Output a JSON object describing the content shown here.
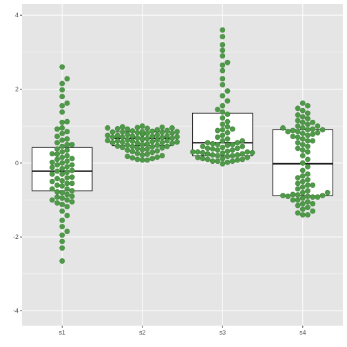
{
  "chart_data": {
    "type": "box",
    "overlay": "beeswarm",
    "categories": [
      "s1",
      "s2",
      "s3",
      "s4"
    ],
    "title": "",
    "xlabel": "",
    "ylabel": "",
    "ylim": [
      -4.4,
      4.3
    ],
    "y_ticks": [
      "-4",
      "-2",
      "0",
      "2",
      "4"
    ],
    "grid": true,
    "colors": {
      "panel": "#e5e5e5",
      "grid_major": "#ffffff",
      "point_fill": "#4f9a48",
      "point_stroke": "#3b7f36",
      "box_fill": "#ffffff",
      "box_line": "#1a1a1a",
      "tick_text": "#4d4d4d"
    },
    "boxes": [
      {
        "category": "s1",
        "q1": -0.75,
        "median": -0.22,
        "q3": 0.42
      },
      {
        "category": "s2",
        "q1": 0.47,
        "median": 0.67,
        "q3": 0.84
      },
      {
        "category": "s3",
        "q1": 0.2,
        "median": 0.55,
        "q3": 1.35
      },
      {
        "category": "s4",
        "q1": -0.88,
        "median": -0.02,
        "q3": 0.9
      }
    ],
    "series": [
      {
        "category": "s1",
        "values": [
          2.6,
          2.28,
          2.15,
          1.98,
          1.8,
          1.62,
          1.55,
          1.38,
          1.12,
          1.1,
          0.92,
          0.85,
          0.72,
          0.62,
          0.5,
          0.5,
          0.45,
          0.38,
          0.35,
          0.25,
          0.24,
          0.15,
          0.12,
          0.1,
          0.05,
          0.02,
          0.0,
          -0.05,
          -0.1,
          -0.12,
          -0.2,
          -0.22,
          -0.25,
          -0.3,
          -0.38,
          -0.42,
          -0.48,
          -0.5,
          -0.55,
          -0.6,
          -0.62,
          -0.7,
          -0.78,
          -0.8,
          -0.85,
          -0.92,
          -0.95,
          -1.0,
          -1.05,
          -1.08,
          -1.12,
          -1.18,
          -1.3,
          -1.42,
          -1.55,
          -1.72,
          -1.85,
          -1.95,
          -2.12,
          -2.3,
          -2.65,
          0.95,
          0.8,
          0.55,
          0.3,
          -0.05,
          -0.4,
          -0.7,
          -0.9,
          -1.0,
          0.2,
          -0.15,
          -0.55,
          -0.75,
          0.65,
          -0.3
        ]
      },
      {
        "category": "s2",
        "values": [
          1.0,
          0.98,
          0.97,
          0.96,
          0.95,
          0.94,
          0.93,
          0.92,
          0.9,
          0.88,
          0.87,
          0.86,
          0.85,
          0.84,
          0.84,
          0.83,
          0.82,
          0.81,
          0.8,
          0.8,
          0.79,
          0.78,
          0.77,
          0.76,
          0.75,
          0.74,
          0.73,
          0.72,
          0.71,
          0.7,
          0.69,
          0.68,
          0.67,
          0.66,
          0.65,
          0.64,
          0.63,
          0.62,
          0.61,
          0.6,
          0.59,
          0.58,
          0.57,
          0.56,
          0.55,
          0.54,
          0.53,
          0.52,
          0.5,
          0.49,
          0.48,
          0.46,
          0.45,
          0.44,
          0.42,
          0.41,
          0.4,
          0.38,
          0.36,
          0.35,
          0.33,
          0.31,
          0.29,
          0.26,
          0.24,
          0.22,
          0.2,
          0.18,
          0.16,
          0.14,
          0.12,
          0.1,
          0.08,
          0.08,
          0.75,
          0.65,
          0.55,
          0.45,
          0.85,
          0.95,
          0.7,
          0.6
        ]
      },
      {
        "category": "s3",
        "values": [
          3.6,
          3.42,
          3.2,
          3.05,
          2.9,
          2.72,
          2.65,
          2.5,
          2.28,
          2.12,
          1.95,
          1.82,
          1.68,
          1.55,
          1.45,
          1.38,
          1.32,
          1.22,
          1.12,
          1.05,
          0.98,
          0.92,
          0.88,
          0.82,
          0.75,
          0.7,
          0.65,
          0.6,
          0.55,
          0.52,
          0.5,
          0.48,
          0.45,
          0.42,
          0.4,
          0.38,
          0.35,
          0.32,
          0.3,
          0.3,
          0.28,
          0.27,
          0.25,
          0.22,
          0.2,
          0.18,
          0.15,
          0.12,
          0.1,
          0.08,
          0.05,
          0.02,
          -0.02,
          0.9,
          0.5,
          0.3,
          0.2,
          0.1,
          0.05,
          0.35,
          0.25,
          0.15,
          0.6,
          0.4,
          0.45,
          0.55,
          0.05,
          0.28,
          0.22,
          0.12
        ]
      },
      {
        "category": "s4",
        "values": [
          1.62,
          1.55,
          1.48,
          1.42,
          1.35,
          1.3,
          1.25,
          1.2,
          1.15,
          1.1,
          1.05,
          1.0,
          0.95,
          0.9,
          0.88,
          0.85,
          0.82,
          0.78,
          0.75,
          0.72,
          0.7,
          0.65,
          0.6,
          0.55,
          0.5,
          0.45,
          0.4,
          0.35,
          0.3,
          0.2,
          0.1,
          0.0,
          -0.1,
          -0.2,
          -0.3,
          -0.35,
          -0.4,
          -0.45,
          -0.5,
          -0.55,
          -0.6,
          -0.65,
          -0.7,
          -0.75,
          -0.8,
          -0.85,
          -0.88,
          -0.9,
          -0.92,
          -0.95,
          -1.0,
          -1.05,
          -1.1,
          -1.15,
          -1.2,
          -1.25,
          -1.3,
          -1.35,
          -1.4,
          -1.4,
          0.92,
          0.85,
          0.9,
          0.95,
          -0.9,
          -0.88,
          -0.92,
          -0.86,
          1.1,
          1.0,
          0.8,
          -1.0,
          -1.1,
          -0.8,
          0.6,
          -0.6
        ]
      }
    ]
  }
}
